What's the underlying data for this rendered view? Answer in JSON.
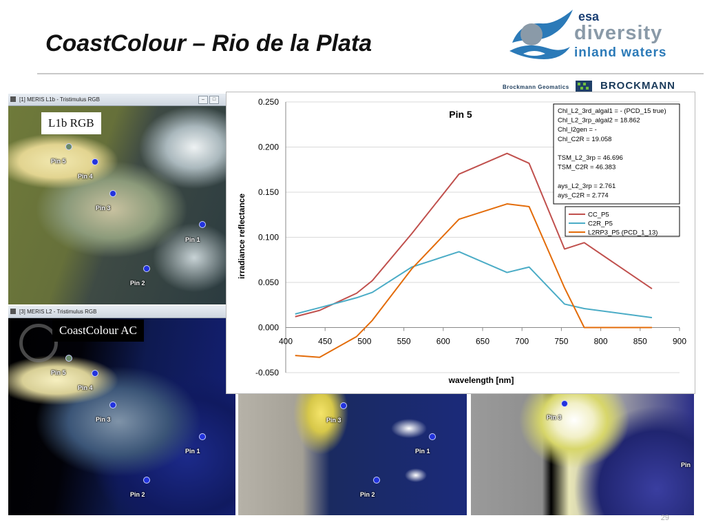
{
  "slide": {
    "title": "CoastColour – Rio de la Plata",
    "page_number": "29"
  },
  "logo": {
    "esa": "esa",
    "line1": "diversity",
    "line2": "inland waters"
  },
  "partner": {
    "left": "Brockmann Geomatics",
    "right": "BROCKMANN"
  },
  "panels": {
    "p1": {
      "title": "[1] MERIS L1b - Tristimulus RGB",
      "label": "L1b RGB"
    },
    "p3": {
      "title": "[3] MERIS L2 - Tristimulus RGB",
      "label": "CoastColour AC"
    }
  },
  "pins": {
    "pin1": "Pin 1",
    "pin2": "Pin 2",
    "pin3": "Pin 3",
    "pin4": "Pin 4",
    "pin5": "Pin 5",
    "pin_partial": "Pin"
  },
  "colors": {
    "cc": "#c0504d",
    "c2r": "#4bacc6",
    "l2rp3": "#e36c0a"
  },
  "chart_data": {
    "type": "line",
    "title": "Pin 5",
    "xlabel": "wavelength [nm]",
    "ylabel": "irradiance reflectance",
    "xlim": [
      400,
      900
    ],
    "ylim": [
      -0.05,
      0.25
    ],
    "x_ticks": [
      "400",
      "450",
      "500",
      "550",
      "600",
      "650",
      "700",
      "750",
      "800",
      "850",
      "900"
    ],
    "y_ticks": [
      "-0.050",
      "0.000",
      "0.050",
      "0.100",
      "0.150",
      "0.200",
      "0.250"
    ],
    "grid": "horizontal",
    "legend_position": "right",
    "series": [
      {
        "name": "CC_P5",
        "color": "#c0504d",
        "x": [
          412,
          443,
          490,
          510,
          560,
          620,
          681,
          709,
          754,
          779,
          865
        ],
        "values": [
          0.012,
          0.019,
          0.038,
          0.052,
          0.104,
          0.17,
          0.193,
          0.182,
          0.087,
          0.094,
          0.043
        ]
      },
      {
        "name": "C2R_P5",
        "color": "#4bacc6",
        "x": [
          412,
          443,
          490,
          510,
          560,
          620,
          681,
          709,
          754,
          779,
          865
        ],
        "values": [
          0.015,
          0.022,
          0.033,
          0.039,
          0.067,
          0.084,
          0.061,
          0.067,
          0.026,
          0.021,
          0.011
        ]
      },
      {
        "name": "L2RP3_P5 (PCD_1_13)",
        "color": "#e36c0a",
        "x": [
          412,
          443,
          490,
          510,
          560,
          620,
          681,
          709,
          754,
          779,
          865
        ],
        "values": [
          -0.031,
          -0.033,
          -0.01,
          0.008,
          0.065,
          0.12,
          0.137,
          0.134,
          0.044,
          0.0,
          0.0
        ]
      }
    ],
    "annotation_lines": [
      "Chl_L2_3rd_algal1 =    - (PCD_15 true)",
      "Chl_L2_3rp_algal2 =  18.862",
      "Chl_l2gen              =  -",
      "Chl_C2R                 = 19.058",
      "",
      "TSM_L2_3rp = 46.696",
      "TSM_C2R      = 46.383",
      "",
      "ays_L2_3rp   = 2.761",
      "ays_C2R        = 2.774"
    ]
  }
}
